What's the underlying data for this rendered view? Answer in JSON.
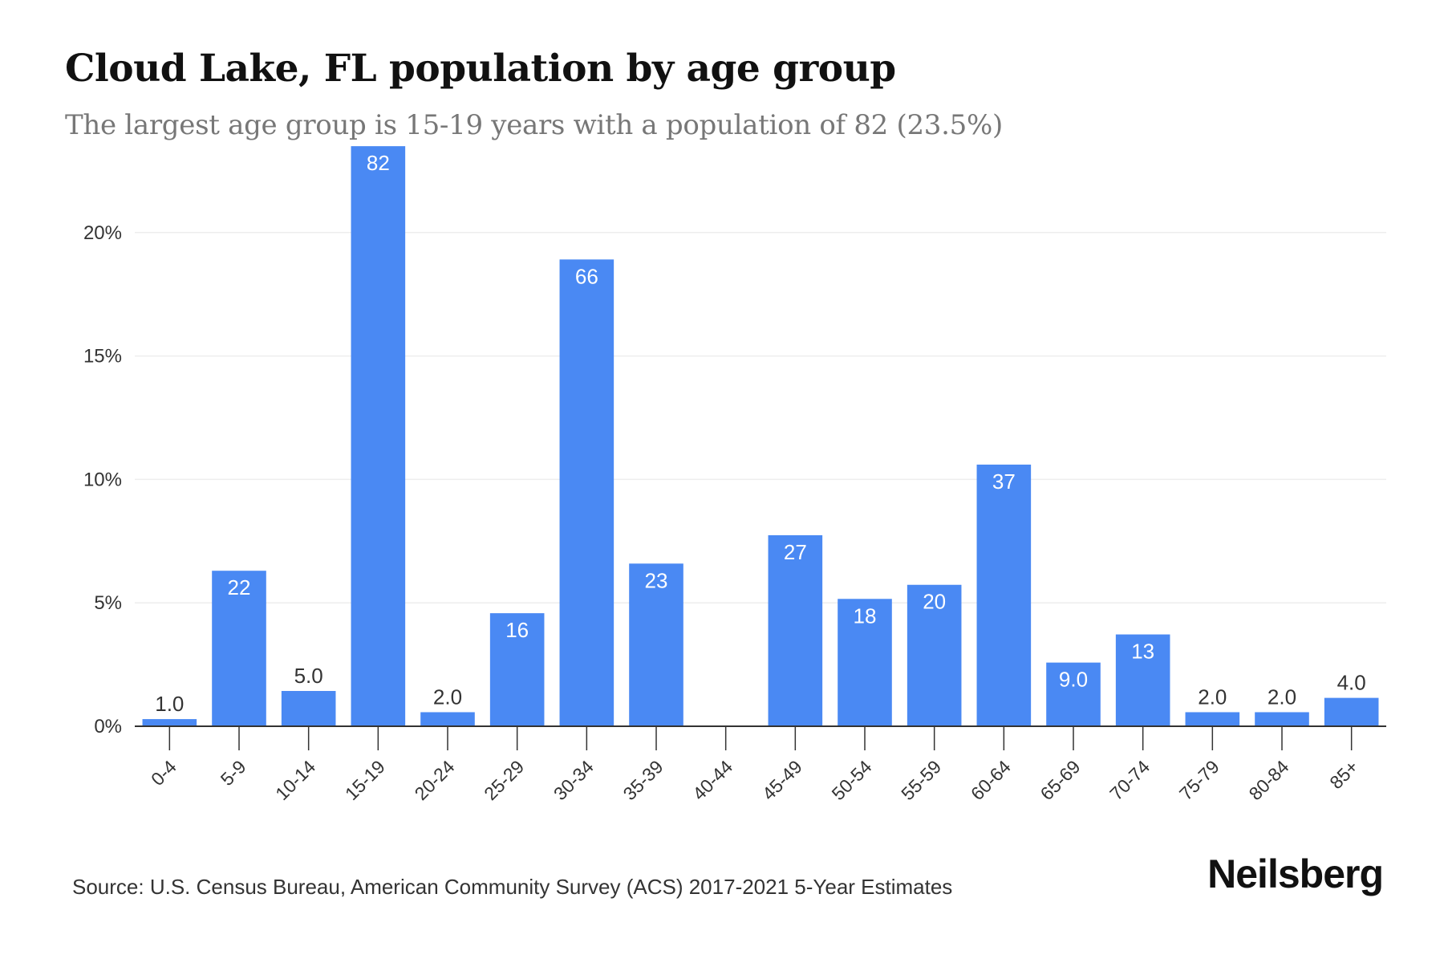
{
  "chart_data": {
    "type": "bar",
    "title": "Cloud Lake, FL population by age group",
    "subtitle": "The largest age group is 15-19 years with a population of 82 (23.5%)",
    "categories": [
      "0-4",
      "5-9",
      "10-14",
      "15-19",
      "20-24",
      "25-29",
      "30-34",
      "35-39",
      "40-44",
      "45-49",
      "50-54",
      "55-59",
      "60-64",
      "65-69",
      "70-74",
      "75-79",
      "80-84",
      "85+"
    ],
    "values": [
      1,
      22,
      5,
      82,
      2,
      16,
      66,
      23,
      0,
      27,
      18,
      20,
      37,
      9,
      13,
      2,
      2,
      4
    ],
    "value_labels": [
      "1.0",
      "22",
      "5.0",
      "82",
      "2.0",
      "16",
      "66",
      "23",
      "",
      "27",
      "18",
      "20",
      "37",
      "9.0",
      "13",
      "2.0",
      "2.0",
      "4.0"
    ],
    "percent_of_total": [
      0.29,
      6.3,
      1.43,
      23.5,
      0.57,
      4.58,
      18.91,
      6.59,
      0,
      7.74,
      5.16,
      5.73,
      10.6,
      2.58,
      3.72,
      0.57,
      0.57,
      1.15
    ],
    "y_axis": {
      "unit": "percent",
      "min": 0,
      "max": 25,
      "ticks": [
        0,
        5,
        10,
        15,
        20
      ],
      "tick_labels": [
        "0%",
        "5%",
        "10%",
        "15%",
        "20%"
      ]
    },
    "xlabel": "",
    "ylabel": "",
    "grid": true,
    "legend": "none",
    "bar_color": "#4a89f3"
  },
  "footer": {
    "source": "Source: U.S. Census Bureau, American Community Survey (ACS) 2017-2021 5-Year Estimates",
    "brand": "Neilsberg"
  }
}
